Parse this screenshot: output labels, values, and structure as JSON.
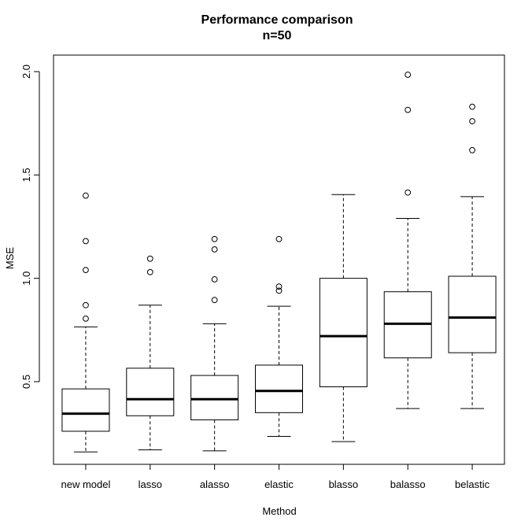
{
  "chart_data": {
    "type": "boxplot",
    "title": "Performance comparison",
    "subtitle": "n=50",
    "xlabel": "Method",
    "ylabel": "MSE",
    "ylim": [
      0.1,
      2.08
    ],
    "yticks": [
      0.5,
      1.0,
      1.5,
      2.0
    ],
    "ytick_labels": [
      "0.5",
      "1.0",
      "1.5",
      "2.0"
    ],
    "grid": false,
    "categories": [
      "new model",
      "lasso",
      "alasso",
      "elastic",
      "blasso",
      "balasso",
      "belastic"
    ],
    "boxes": [
      {
        "category": "new model",
        "whisker_low": 0.16,
        "q1": 0.26,
        "median": 0.345,
        "q3": 0.465,
        "whisker_high": 0.765,
        "outliers": [
          0.805,
          0.87,
          1.04,
          1.18,
          1.4
        ]
      },
      {
        "category": "lasso",
        "whisker_low": 0.17,
        "q1": 0.335,
        "median": 0.415,
        "q3": 0.565,
        "whisker_high": 0.87,
        "outliers": [
          1.03,
          1.095
        ]
      },
      {
        "category": "alasso",
        "whisker_low": 0.165,
        "q1": 0.315,
        "median": 0.415,
        "q3": 0.53,
        "whisker_high": 0.78,
        "outliers": [
          0.895,
          0.995,
          1.14,
          1.19
        ]
      },
      {
        "category": "elastic",
        "whisker_low": 0.235,
        "q1": 0.35,
        "median": 0.455,
        "q3": 0.58,
        "whisker_high": 0.865,
        "outliers": [
          0.94,
          0.96,
          1.19
        ]
      },
      {
        "category": "blasso",
        "whisker_low": 0.21,
        "q1": 0.475,
        "median": 0.72,
        "q3": 1.0,
        "whisker_high": 1.405,
        "outliers": []
      },
      {
        "category": "balasso",
        "whisker_low": 0.37,
        "q1": 0.615,
        "median": 0.78,
        "q3": 0.935,
        "whisker_high": 1.29,
        "outliers": [
          1.415,
          1.815,
          1.985
        ]
      },
      {
        "category": "belastic",
        "whisker_low": 0.37,
        "q1": 0.64,
        "median": 0.81,
        "q3": 1.01,
        "whisker_high": 1.395,
        "outliers": [
          1.62,
          1.76,
          1.83
        ]
      }
    ]
  }
}
